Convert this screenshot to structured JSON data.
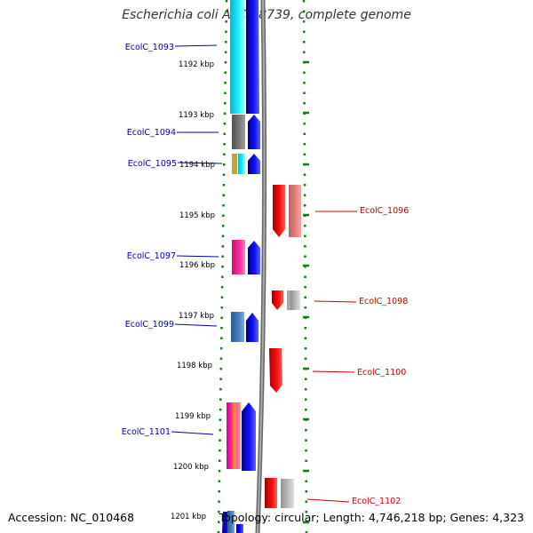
{
  "title": "Escherichia coli ATCC 8739, complete genome",
  "accession": "Accession: NC_010468",
  "topology": "Topology: circular; Length: 4,746,218 bp; Genes: 4,323",
  "ticks": [
    "1192 kbp",
    "1193 kbp",
    "1194 kbp",
    "1195 kbp",
    "1196 kbp",
    "1197 kbp",
    "1198 kbp",
    "1199 kbp",
    "1200 kbp",
    "1201 kbp"
  ],
  "left_genes": [
    {
      "label": "EcolC_1093",
      "color": "#0000aa"
    },
    {
      "label": "EcolC_1094",
      "color": "#0000aa"
    },
    {
      "label": "EcolC_1095",
      "color": "#0000aa"
    },
    {
      "label": "EcolC_1097",
      "color": "#0000aa"
    },
    {
      "label": "EcolC_1099",
      "color": "#0000aa"
    },
    {
      "label": "EcolC_1101",
      "color": "#0000aa"
    }
  ],
  "right_genes": [
    {
      "label": "EcolC_1096",
      "color": "#cc0000"
    },
    {
      "label": "EcolC_1098",
      "color": "#cc0000"
    },
    {
      "label": "EcolC_1100",
      "color": "#cc0000"
    },
    {
      "label": "EcolC_1102",
      "color": "#cc0000"
    }
  ],
  "colors": {
    "forward_strand": "#0000ee",
    "reverse_strand": "#ee0000",
    "backbone": "#888888",
    "dotted_ring": "#008800",
    "left_label": "#0000aa",
    "right_label": "#cc0000"
  }
}
